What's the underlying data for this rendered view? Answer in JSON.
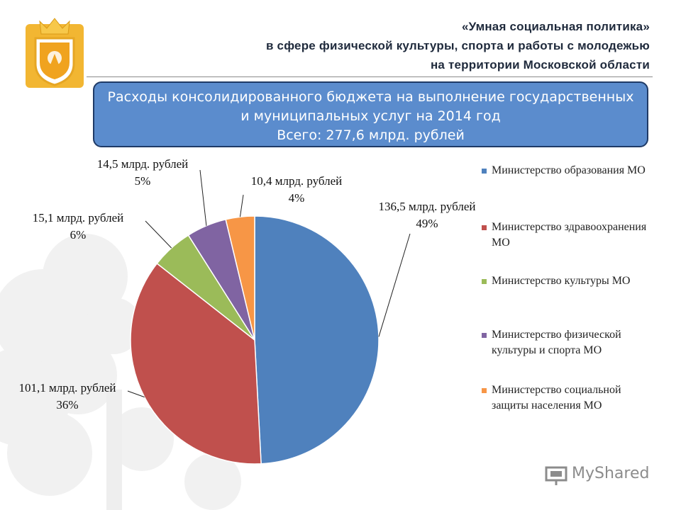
{
  "header": {
    "line1": "«Умная социальная политика»",
    "line2": "в сфере физической культуры, спорта и работы с молодежью",
    "line3": "на территории Московской области"
  },
  "banner": {
    "line1": "Расходы консолидированного бюджета на выполнение государственных",
    "line2": "и муниципальных услуг на 2014 год",
    "line3": "Всего: 277,6 млрд. рублей"
  },
  "chart_data": {
    "type": "pie",
    "total": 277.6,
    "slices": [
      {
        "name": "Министерство образования МО",
        "value": 136.5,
        "value_label": "136,5 млрд. рублей",
        "percent_label": "49%",
        "color": "#4f81bd"
      },
      {
        "name": "Министерство здравоохранения МО",
        "value": 101.1,
        "value_label": "101,1 млрд. рублей",
        "percent_label": "36%",
        "color": "#c0504d"
      },
      {
        "name": "Министерство культуры МО",
        "value": 15.1,
        "value_label": "15,1 млрд. рублей",
        "percent_label": "6%",
        "color": "#9bbb59"
      },
      {
        "name": "Министерство физической культуры и спорта МО",
        "value": 14.5,
        "value_label": "14,5 млрд. рублей",
        "percent_label": "5%",
        "color": "#8064a2"
      },
      {
        "name": "Министерство социальной защиты населения МО",
        "value": 10.4,
        "value_label": "10,4 млрд. рублей",
        "percent_label": "4%",
        "color": "#f79646"
      }
    ],
    "legend_position": "right"
  },
  "legend_lines": [
    [
      "Министерство образования МО"
    ],
    [
      "Министерство здравоохранения",
      "МО"
    ],
    [
      "Министерство культуры МО"
    ],
    [
      "Министерство физической",
      "культуры и спорта МО"
    ],
    [
      "Министерство социальной",
      "защиты населения МО"
    ]
  ],
  "watermark": {
    "text": "MyShared",
    "icon": "presentation-board-icon",
    "color": "#8c8c8c"
  },
  "emblem": {
    "icon": "moscow-oblast-coat-of-arms-icon",
    "color": "#f2b632"
  }
}
